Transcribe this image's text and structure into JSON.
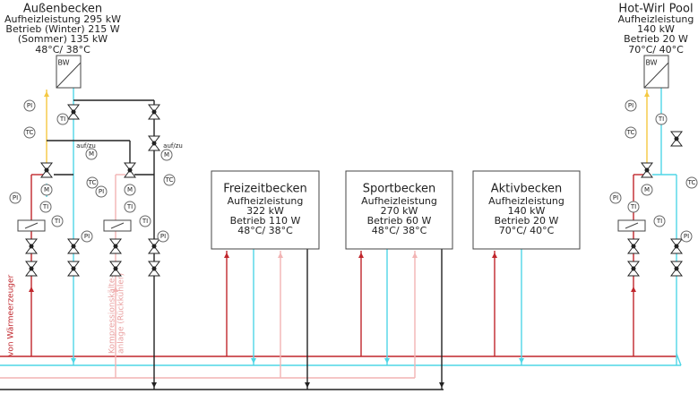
{
  "pools": [
    {
      "name": "Außenbecken",
      "lines": [
        "Aufheizleistung 295 kW",
        "Betrieb (Winter) 215 W",
        "(Sommer) 135 kW",
        "48°C/ 38°C"
      ]
    },
    {
      "name": "Hot-Wirl Pool",
      "lines": [
        "Aufheizleistung",
        "140 kW",
        "Betrieb 20 W",
        "70°C/ 40°C"
      ]
    },
    {
      "name": "Freizeitbecken",
      "lines": [
        "Aufheizleistung",
        "322 kW",
        "Betrieb 110 W",
        "48°C/ 38°C"
      ]
    },
    {
      "name": "Sportbecken",
      "lines": [
        "Aufheizleistung",
        "270 kW",
        "Betrieb 60 W",
        "48°C/ 38°C"
      ]
    },
    {
      "name": "Aktivbecken",
      "lines": [
        "Aufheizleistung",
        "140 kW",
        "Betrieb 20 W",
        "70°C/ 40°C"
      ]
    }
  ],
  "exchangers": [
    "BW",
    "BW"
  ],
  "instruments": [
    "PI",
    "TI",
    "TC",
    "M",
    "M",
    "M",
    "TI",
    "PI",
    "TC",
    "PI",
    "M",
    "TI",
    "PI",
    "TI",
    "TC",
    "TI",
    "PI",
    "PI",
    "TI",
    "TC",
    "M",
    "TC",
    "PI",
    "TI",
    "TI",
    "PI"
  ],
  "switch_labels": [
    "auf/zu",
    "auf/zu"
  ],
  "pipe_labels": [
    "von Wärmeerzeuger",
    "Kompressionskälte-",
    "anlage (Rückkühler)"
  ]
}
